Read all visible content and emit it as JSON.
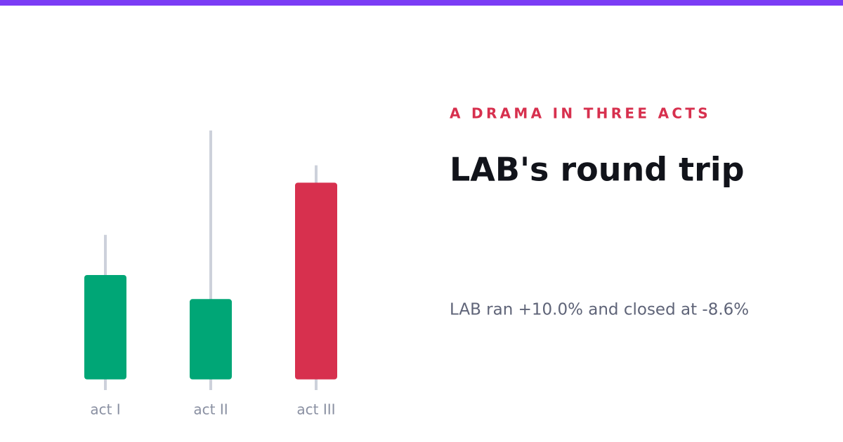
{
  "chart_data": {
    "type": "candlestick",
    "kicker": "A DRAMA IN THREE ACTS",
    "title": "LAB's round trip",
    "subtitle": "LAB ran +10.0% and closed at -8.6%",
    "categories": [
      "act I",
      "act II",
      "act III"
    ],
    "open": [
      -8.6,
      -8.6,
      6.1
    ],
    "high": [
      2.2,
      10.0,
      7.4
    ],
    "low": [
      -9.4,
      -9.4,
      -9.4
    ],
    "close": [
      -0.8,
      -2.6,
      -8.6
    ],
    "ylim": [
      -9.4,
      10.0
    ],
    "up_color": "#00a676",
    "down_color": "#d7304e",
    "wick_color": "#cdd1db"
  }
}
